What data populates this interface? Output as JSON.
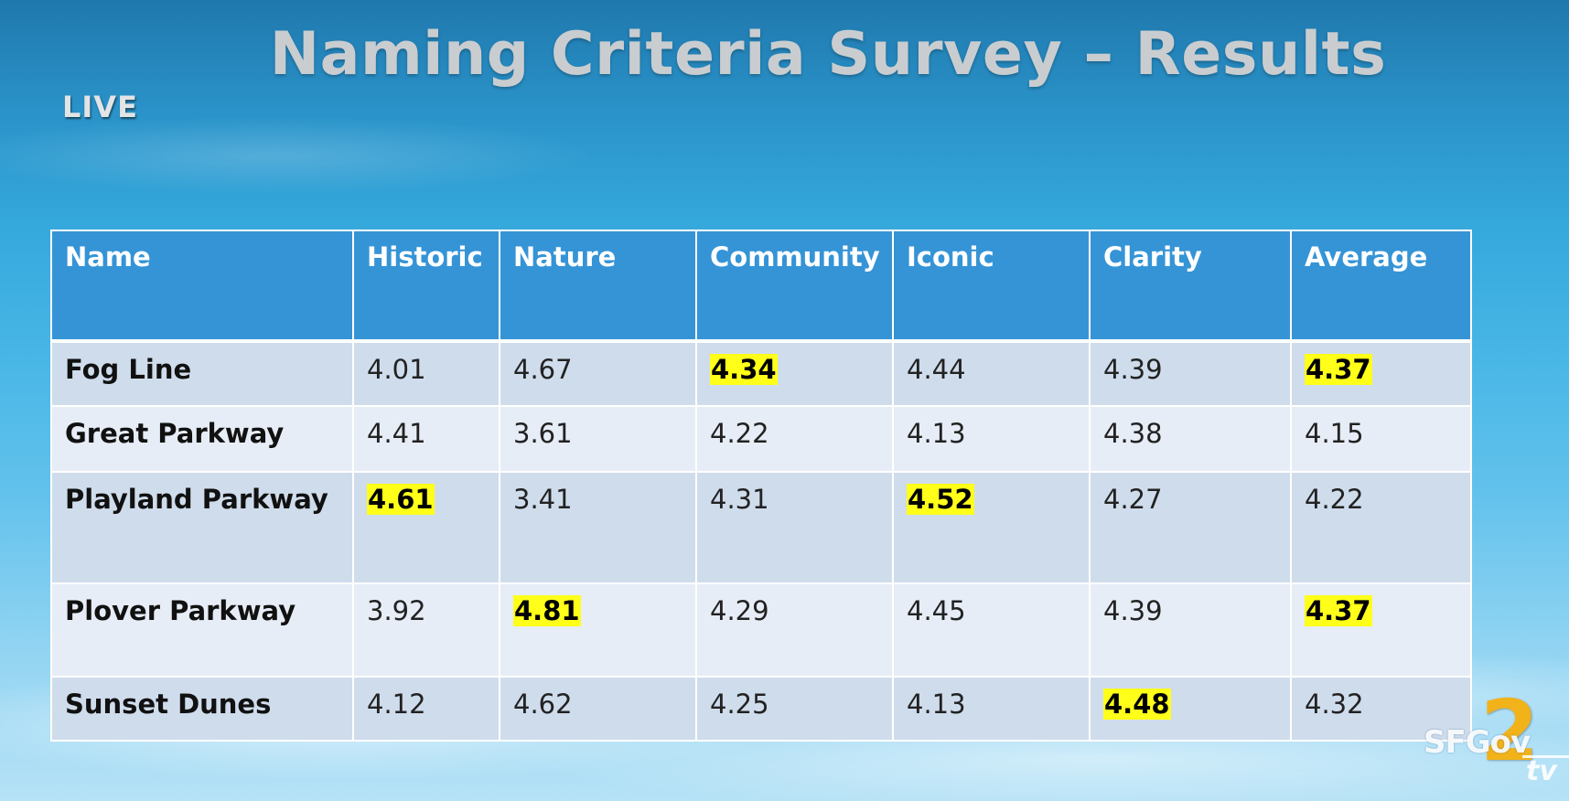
{
  "slide": {
    "title": "Naming Criteria Survey – Results",
    "live_label": "LIVE"
  },
  "table": {
    "columns": [
      "Name",
      "Historic",
      "Nature",
      "Community",
      "Iconic",
      "Clarity",
      "Average"
    ],
    "rows": [
      {
        "name": "Fog Line",
        "values": [
          "4.01",
          "4.67",
          "4.34",
          "4.44",
          "4.39",
          "4.37"
        ]
      },
      {
        "name": "Great Parkway",
        "values": [
          "4.41",
          "3.61",
          "4.22",
          "4.13",
          "4.38",
          "4.15"
        ]
      },
      {
        "name": "Playland Parkway",
        "values": [
          "4.61",
          "3.41",
          "4.31",
          "4.52",
          "4.27",
          "4.22"
        ]
      },
      {
        "name": "Plover Parkway",
        "values": [
          "3.92",
          "4.81",
          "4.29",
          "4.45",
          "4.39",
          "4.37"
        ]
      },
      {
        "name": "Sunset Dunes",
        "values": [
          "4.12",
          "4.62",
          "4.25",
          "4.13",
          "4.48",
          "4.32"
        ]
      }
    ],
    "highlighted": [
      {
        "row": 0,
        "col": 2
      },
      {
        "row": 0,
        "col": 5
      },
      {
        "row": 2,
        "col": 0
      },
      {
        "row": 2,
        "col": 3
      },
      {
        "row": 3,
        "col": 1
      },
      {
        "row": 3,
        "col": 5
      },
      {
        "row": 4,
        "col": 4
      }
    ]
  },
  "logo": {
    "sfgov": "SFGov",
    "number": "2",
    "tv": "tv"
  },
  "colors": {
    "header_bg": "#3594d6",
    "row_odd_bg": "#cfdcec",
    "row_even_bg": "#e7edf6",
    "highlight": "#ffff19",
    "logo_accent": "#f2b21a"
  }
}
